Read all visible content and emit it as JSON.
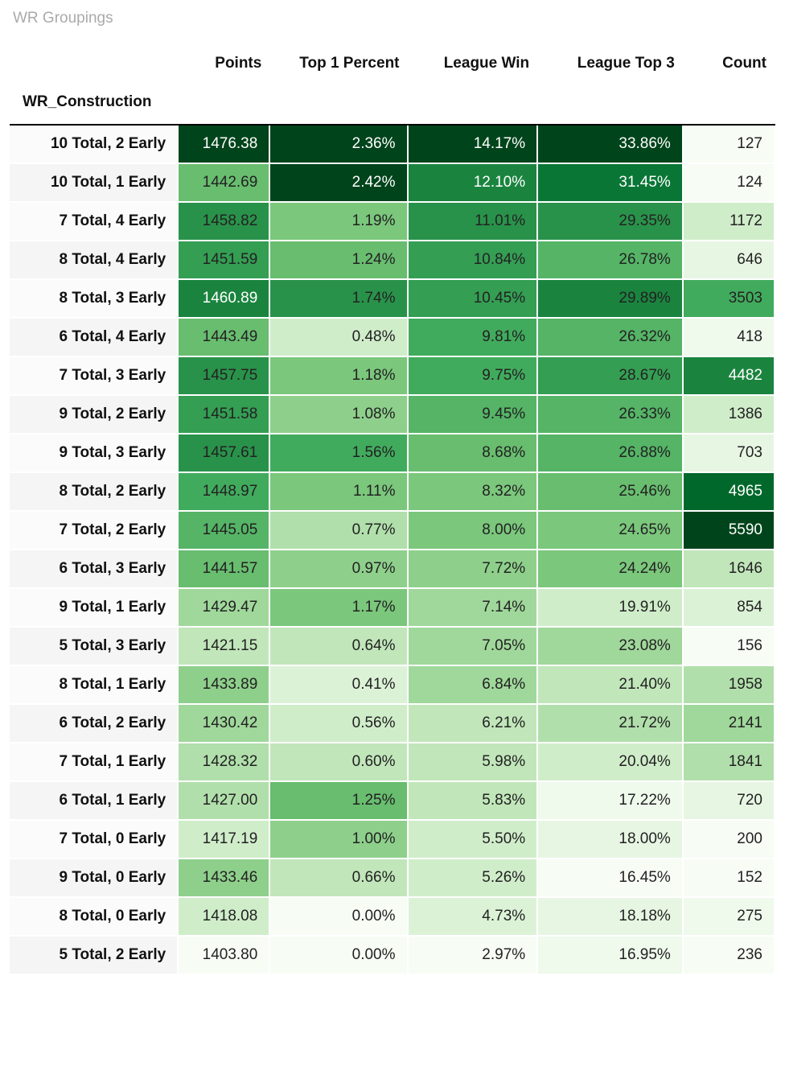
{
  "title": "WR Groupings",
  "index_label": "WR_Construction",
  "columns": [
    "Points",
    "Top 1 Percent",
    "League Win",
    "League Top 3",
    "Count"
  ],
  "col_formats": [
    "num2",
    "pct2",
    "pct2",
    "pct2",
    "int"
  ],
  "background_color": "#ffffff",
  "title_color": "#aaaaaa",
  "text_dark": "#222222",
  "text_light": "#ffffff",
  "light_text_threshold": 0.78,
  "heatmap_palette": [
    "#f7fcf5",
    "#eff9ec",
    "#e7f6e3",
    "#dcf2d7",
    "#d0edca",
    "#c1e6ba",
    "#b1dfab",
    "#a0d89b",
    "#8ed08b",
    "#7bc77c",
    "#68bd6f",
    "#55b466",
    "#41ab5d",
    "#349e53",
    "#29924a",
    "#1a843f",
    "#0a7635",
    "#00682a",
    "#005a24",
    "#00441b"
  ],
  "rows": [
    {
      "label": "10 Total, 2 Early",
      "points": 1476.38,
      "top1": 2.36,
      "lwin": 14.17,
      "ltop3": 33.86,
      "count": 127
    },
    {
      "label": "10 Total, 1 Early",
      "points": 1442.69,
      "top1": 2.42,
      "lwin": 12.1,
      "ltop3": 31.45,
      "count": 124
    },
    {
      "label": "7 Total, 4 Early",
      "points": 1458.82,
      "top1": 1.19,
      "lwin": 11.01,
      "ltop3": 29.35,
      "count": 1172
    },
    {
      "label": "8 Total, 4 Early",
      "points": 1451.59,
      "top1": 1.24,
      "lwin": 10.84,
      "ltop3": 26.78,
      "count": 646
    },
    {
      "label": "8 Total, 3 Early",
      "points": 1460.89,
      "top1": 1.74,
      "lwin": 10.45,
      "ltop3": 29.89,
      "count": 3503
    },
    {
      "label": "6 Total, 4 Early",
      "points": 1443.49,
      "top1": 0.48,
      "lwin": 9.81,
      "ltop3": 26.32,
      "count": 418
    },
    {
      "label": "7 Total, 3 Early",
      "points": 1457.75,
      "top1": 1.18,
      "lwin": 9.75,
      "ltop3": 28.67,
      "count": 4482
    },
    {
      "label": "9 Total, 2 Early",
      "points": 1451.58,
      "top1": 1.08,
      "lwin": 9.45,
      "ltop3": 26.33,
      "count": 1386
    },
    {
      "label": "9 Total, 3 Early",
      "points": 1457.61,
      "top1": 1.56,
      "lwin": 8.68,
      "ltop3": 26.88,
      "count": 703
    },
    {
      "label": "8 Total, 2 Early",
      "points": 1448.97,
      "top1": 1.11,
      "lwin": 8.32,
      "ltop3": 25.46,
      "count": 4965
    },
    {
      "label": "7 Total, 2 Early",
      "points": 1445.05,
      "top1": 0.77,
      "lwin": 8.0,
      "ltop3": 24.65,
      "count": 5590
    },
    {
      "label": "6 Total, 3 Early",
      "points": 1441.57,
      "top1": 0.97,
      "lwin": 7.72,
      "ltop3": 24.24,
      "count": 1646
    },
    {
      "label": "9 Total, 1 Early",
      "points": 1429.47,
      "top1": 1.17,
      "lwin": 7.14,
      "ltop3": 19.91,
      "count": 854
    },
    {
      "label": "5 Total, 3 Early",
      "points": 1421.15,
      "top1": 0.64,
      "lwin": 7.05,
      "ltop3": 23.08,
      "count": 156
    },
    {
      "label": "8 Total, 1 Early",
      "points": 1433.89,
      "top1": 0.41,
      "lwin": 6.84,
      "ltop3": 21.4,
      "count": 1958
    },
    {
      "label": "6 Total, 2 Early",
      "points": 1430.42,
      "top1": 0.56,
      "lwin": 6.21,
      "ltop3": 21.72,
      "count": 2141
    },
    {
      "label": "7 Total, 1 Early",
      "points": 1428.32,
      "top1": 0.6,
      "lwin": 5.98,
      "ltop3": 20.04,
      "count": 1841
    },
    {
      "label": "6 Total, 1 Early",
      "points": 1427.0,
      "top1": 1.25,
      "lwin": 5.83,
      "ltop3": 17.22,
      "count": 720
    },
    {
      "label": "7 Total, 0 Early",
      "points": 1417.19,
      "top1": 1.0,
      "lwin": 5.5,
      "ltop3": 18.0,
      "count": 200
    },
    {
      "label": "9 Total, 0 Early",
      "points": 1433.46,
      "top1": 0.66,
      "lwin": 5.26,
      "ltop3": 16.45,
      "count": 152
    },
    {
      "label": "8 Total, 0 Early",
      "points": 1418.08,
      "top1": 0.0,
      "lwin": 4.73,
      "ltop3": 18.18,
      "count": 275
    },
    {
      "label": "5 Total, 2 Early",
      "points": 1403.8,
      "top1": 0.0,
      "lwin": 2.97,
      "ltop3": 16.95,
      "count": 236
    }
  ]
}
